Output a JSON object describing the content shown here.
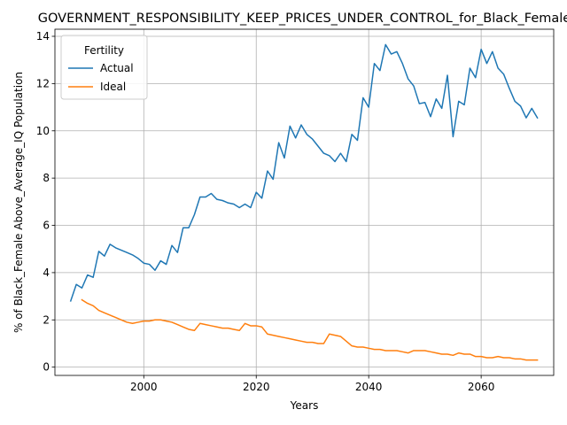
{
  "chart_data": {
    "type": "line",
    "title": "GOVERNMENT_RESPONSIBILITY_KEEP_PRICES_UNDER_CONTROL_for_Black_Female",
    "xlabel": "Years",
    "ylabel": "% of Black_Female Above_Average_IQ Population",
    "xlim": [
      2077,
      2075
    ],
    "ylim": [
      -0.35,
      14.3
    ],
    "xticks": [
      2000,
      2020,
      2040,
      2060
    ],
    "yticks": [
      0,
      2,
      4,
      6,
      8,
      10,
      12,
      14
    ],
    "grid": true,
    "legend": {
      "title": "Fertility",
      "placement": "top-left"
    },
    "series": [
      {
        "name": "Actual",
        "color": "#1f77b4",
        "x": [
          1987,
          1988,
          1989,
          1990,
          1991,
          1992,
          1993,
          1994,
          1995,
          1996,
          1997,
          1998,
          1999,
          2000,
          2001,
          2002,
          2003,
          2004,
          2005,
          2006,
          2007,
          2008,
          2009,
          2010,
          2011,
          2012,
          2013,
          2014,
          2015,
          2016,
          2017,
          2018,
          2019,
          2020,
          2021,
          2022,
          2023,
          2024,
          2025,
          2026,
          2027,
          2028,
          2029,
          2030,
          2031,
          2032,
          2033,
          2034,
          2035,
          2036,
          2037,
          2038,
          2039,
          2040,
          2041,
          2042,
          2043,
          2044,
          2045,
          2046,
          2047,
          2048,
          2049,
          2050,
          2051,
          2052,
          2053,
          2054,
          2055,
          2056,
          2057,
          2058,
          2059,
          2060,
          2061,
          2062,
          2063,
          2064,
          2065,
          2066,
          2067,
          2068,
          2069,
          2070
        ],
        "values": [
          2.8,
          3.5,
          3.35,
          3.9,
          3.8,
          4.9,
          4.7,
          5.2,
          5.05,
          4.95,
          4.85,
          4.75,
          4.6,
          4.4,
          4.35,
          4.1,
          4.5,
          4.35,
          5.15,
          4.85,
          5.9,
          5.9,
          6.45,
          7.2,
          7.2,
          7.35,
          7.1,
          7.05,
          6.95,
          6.9,
          6.75,
          6.9,
          6.75,
          7.4,
          7.15,
          8.3,
          7.95,
          9.5,
          8.85,
          10.2,
          9.7,
          10.25,
          9.85,
          9.65,
          9.35,
          9.05,
          8.95,
          8.7,
          9.05,
          8.7,
          9.85,
          9.6,
          11.4,
          11.0,
          12.85,
          12.55,
          13.65,
          13.25,
          13.35,
          12.85,
          12.2,
          11.9,
          11.15,
          11.2,
          10.6,
          11.35,
          10.95,
          12.35,
          9.75,
          11.25,
          11.1,
          12.65,
          12.25,
          13.45,
          12.85,
          13.35,
          12.65,
          12.4,
          11.8,
          11.25,
          11.05,
          10.55,
          10.95,
          10.55
        ]
      },
      {
        "name": "Ideal",
        "color": "#ff7f0e",
        "x": [
          1989,
          1990,
          1991,
          1992,
          1993,
          1994,
          1995,
          1996,
          1997,
          1998,
          1999,
          2000,
          2001,
          2002,
          2003,
          2004,
          2005,
          2006,
          2007,
          2008,
          2009,
          2010,
          2011,
          2012,
          2013,
          2014,
          2015,
          2016,
          2017,
          2018,
          2019,
          2020,
          2021,
          2022,
          2023,
          2024,
          2025,
          2026,
          2027,
          2028,
          2029,
          2030,
          2031,
          2032,
          2033,
          2034,
          2035,
          2036,
          2037,
          2038,
          2039,
          2040,
          2041,
          2042,
          2043,
          2044,
          2045,
          2046,
          2047,
          2048,
          2049,
          2050,
          2051,
          2052,
          2053,
          2054,
          2055,
          2056,
          2057,
          2058,
          2059,
          2060,
          2061,
          2062,
          2063,
          2064,
          2065,
          2066,
          2067,
          2068,
          2069,
          2070
        ],
        "values": [
          2.85,
          2.7,
          2.6,
          2.4,
          2.3,
          2.2,
          2.1,
          2.0,
          1.9,
          1.85,
          1.9,
          1.95,
          1.95,
          2.0,
          2.0,
          1.95,
          1.9,
          1.8,
          1.7,
          1.6,
          1.55,
          1.85,
          1.8,
          1.75,
          1.7,
          1.65,
          1.65,
          1.6,
          1.55,
          1.85,
          1.75,
          1.75,
          1.7,
          1.4,
          1.35,
          1.3,
          1.25,
          1.2,
          1.15,
          1.1,
          1.05,
          1.05,
          1.0,
          1.0,
          1.4,
          1.35,
          1.3,
          1.1,
          0.9,
          0.85,
          0.85,
          0.8,
          0.75,
          0.75,
          0.7,
          0.7,
          0.7,
          0.65,
          0.6,
          0.7,
          0.7,
          0.7,
          0.65,
          0.6,
          0.55,
          0.55,
          0.5,
          0.6,
          0.55,
          0.55,
          0.45,
          0.45,
          0.4,
          0.4,
          0.45,
          0.4,
          0.4,
          0.35,
          0.35,
          0.3,
          0.3,
          0.3
        ]
      }
    ]
  }
}
